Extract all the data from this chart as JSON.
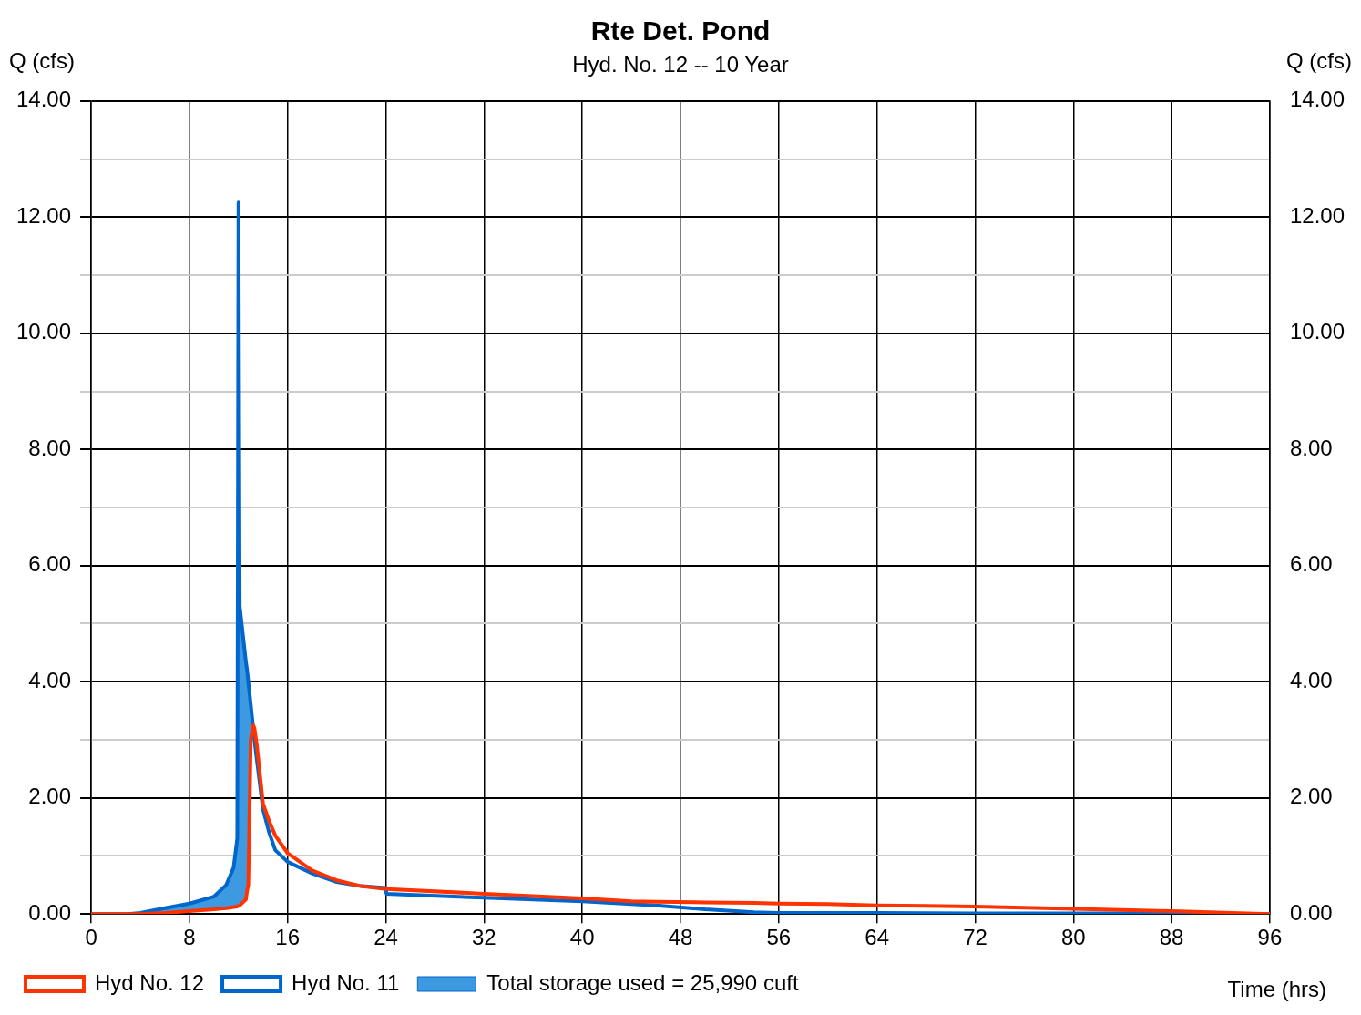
{
  "chart_data": {
    "type": "line",
    "title": "Rte Det. Pond",
    "subtitle": "Hyd. No. 12 -- 10 Year",
    "xlabel": "Time (hrs)",
    "ylabel": "Q (cfs)",
    "y2label": "Q (cfs)",
    "x": [
      0,
      3,
      4,
      6,
      8,
      10,
      11,
      11.6,
      11.9,
      12,
      12.1,
      12.6,
      12.7,
      12.8,
      13,
      13.2,
      13.3,
      13.5,
      14,
      14.5,
      15,
      16,
      18,
      20,
      22,
      24,
      24.05,
      32,
      40,
      44,
      46,
      50,
      54,
      56,
      60,
      64,
      72,
      80,
      88,
      96
    ],
    "series": [
      {
        "name": "Hyd No. 12",
        "color": "#ff3300",
        "values": [
          0,
          0,
          0,
          0.02,
          0.05,
          0.08,
          0.1,
          0.12,
          0.13,
          0.14,
          0.15,
          0.25,
          0.4,
          0.5,
          3.0,
          3.25,
          3.2,
          2.9,
          1.9,
          1.6,
          1.35,
          1.05,
          0.75,
          0.58,
          0.48,
          0.43,
          0.43,
          0.35,
          0.27,
          0.22,
          0.21,
          0.2,
          0.19,
          0.18,
          0.17,
          0.15,
          0.13,
          0.09,
          0.05,
          0
        ]
      },
      {
        "name": "Hyd No. 11",
        "color": "#0066cc",
        "values": [
          0,
          0,
          0.02,
          0.1,
          0.18,
          0.3,
          0.5,
          0.8,
          1.3,
          12.25,
          5.3,
          4.35,
          4.2,
          4.0,
          3.6,
          3.2,
          3.0,
          2.65,
          1.8,
          1.4,
          1.1,
          0.9,
          0.7,
          0.55,
          0.48,
          0.45,
          0.35,
          0.28,
          0.22,
          0.17,
          0.15,
          0.08,
          0.03,
          0.02,
          0.02,
          0.02,
          0.01,
          0.01,
          0.01,
          0
        ],
        "upper": [
          0,
          0,
          0.02,
          0.1,
          0.18,
          0.3,
          0.5,
          0.8,
          1.3,
          12.25,
          5.3,
          4.35,
          4.2,
          4.0,
          3.6,
          3.2,
          3.0,
          2.65,
          1.8,
          1.4,
          1.1,
          0.9,
          0.7,
          0.55,
          0.48,
          0.45,
          0.35,
          0.28,
          0.22,
          0.17,
          0.15,
          0.08,
          0.03,
          0.02,
          0.02,
          0.02,
          0.01,
          0.01,
          0.01,
          0
        ],
        "lower": [
          0,
          0,
          0,
          0.02,
          0.05,
          0.08,
          0.1,
          0.12,
          0.13,
          0.14,
          0.15,
          0.25,
          0.4,
          0.5,
          3.0,
          3.25,
          3.2,
          2.9,
          1.9,
          1.6,
          1.35,
          1.05,
          0.75,
          0.58,
          0.48,
          0.43,
          0.43,
          0.35,
          0.27,
          0.22,
          0.21,
          0.2,
          0.19,
          0.18,
          0.17,
          0.15,
          0.13,
          0.09,
          0.05,
          0
        ]
      }
    ],
    "xlim": [
      0,
      96
    ],
    "xticks": [
      0,
      8,
      16,
      24,
      32,
      40,
      48,
      56,
      64,
      72,
      80,
      88,
      96
    ],
    "ylim": [
      0,
      14
    ],
    "yticks": [
      {
        "value": 0,
        "label": "0.00"
      },
      {
        "value": 1,
        "label": null
      },
      {
        "value": 2,
        "label": "2.00"
      },
      {
        "value": 3,
        "label": null
      },
      {
        "value": 4,
        "label": "4.00"
      },
      {
        "value": 5,
        "label": null
      },
      {
        "value": 6,
        "label": "6.00"
      },
      {
        "value": 7,
        "label": null
      },
      {
        "value": 8,
        "label": "8.00"
      },
      {
        "value": 9,
        "label": null
      },
      {
        "value": 10,
        "label": "10.00"
      },
      {
        "value": 11,
        "label": null
      },
      {
        "value": 12,
        "label": "12.00"
      },
      {
        "value": 13,
        "label": null
      },
      {
        "value": 14,
        "label": "14.00"
      }
    ],
    "y2lim": [
      0,
      14
    ],
    "y2ticks": [
      {
        "value": 0,
        "label": "0.00"
      },
      {
        "value": 1,
        "label": null
      },
      {
        "value": 2,
        "label": "2.00"
      },
      {
        "value": 3,
        "label": null
      },
      {
        "value": 4,
        "label": "4.00"
      },
      {
        "value": 5,
        "label": null
      },
      {
        "value": 6,
        "label": "6.00"
      },
      {
        "value": 7,
        "label": null
      },
      {
        "value": 8,
        "label": "8.00"
      },
      {
        "value": 9,
        "label": null
      },
      {
        "value": 10,
        "label": "10.00"
      },
      {
        "value": 11,
        "label": null
      },
      {
        "value": 12,
        "label": "12.00"
      },
      {
        "value": 13,
        "label": null
      },
      {
        "value": 14,
        "label": "14.00"
      }
    ],
    "annotations": [
      "Total storage used = 25,990 cuft"
    ],
    "grid": true,
    "legend": "bottom",
    "marker": "none",
    "line_style": "solid"
  }
}
